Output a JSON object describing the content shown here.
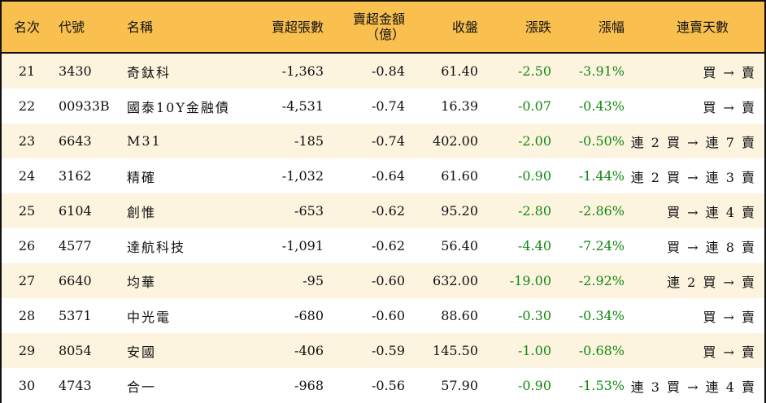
{
  "colors": {
    "header_bg": "#f9c04f",
    "row_alt": "#fdf4e0",
    "negative": "#118811"
  },
  "headers": [
    "名次",
    "代號",
    "名稱",
    "賣超張數",
    "賣超金額",
    "（億）",
    "收盤",
    "漲跌",
    "漲幅",
    "連賣天數"
  ],
  "rows": [
    [
      "21",
      "3430",
      "奇鈦科",
      "-1,363",
      "-0.84",
      "61.40",
      "-2.50",
      "-3.91%",
      "買 → 賣"
    ],
    [
      "22",
      "00933B",
      "國泰10Y金融債",
      "-4,531",
      "-0.74",
      "16.39",
      "-0.07",
      "-0.43%",
      "買 → 賣"
    ],
    [
      "23",
      "6643",
      "M31",
      "-185",
      "-0.74",
      "402.00",
      "-2.00",
      "-0.50%",
      "連 2 買 → 連 7 賣"
    ],
    [
      "24",
      "3162",
      "精確",
      "-1,032",
      "-0.64",
      "61.60",
      "-0.90",
      "-1.44%",
      "連 2 買 → 連 3 賣"
    ],
    [
      "25",
      "6104",
      "創惟",
      "-653",
      "-0.62",
      "95.20",
      "-2.80",
      "-2.86%",
      "買 → 連 4 賣"
    ],
    [
      "26",
      "4577",
      "達航科技",
      "-1,091",
      "-0.62",
      "56.40",
      "-4.40",
      "-7.24%",
      "買 → 連 8 賣"
    ],
    [
      "27",
      "6640",
      "均華",
      "-95",
      "-0.60",
      "632.00",
      "-19.00",
      "-2.92%",
      "連 2 買 → 賣"
    ],
    [
      "28",
      "5371",
      "中光電",
      "-680",
      "-0.60",
      "88.60",
      "-0.30",
      "-0.34%",
      "買 → 賣"
    ],
    [
      "29",
      "8054",
      "安國",
      "-406",
      "-0.59",
      "145.50",
      "-1.00",
      "-0.68%",
      "買 → 賣"
    ],
    [
      "30",
      "4743",
      "合一",
      "-968",
      "-0.56",
      "57.90",
      "-0.90",
      "-1.53%",
      "連 3 買 → 連 4 賣"
    ]
  ]
}
